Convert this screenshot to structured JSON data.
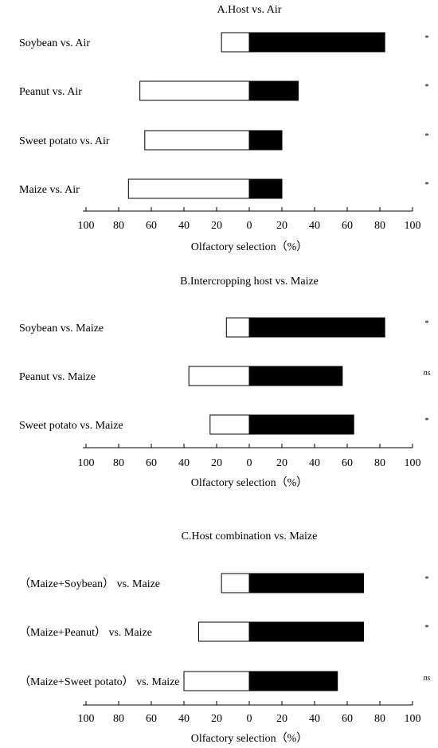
{
  "chart_data": [
    {
      "type": "bar",
      "orientation": "horizontal-diverging",
      "title": "A.Host vs. Air",
      "xlabel": "Olfactory selection（%）",
      "ylabel": "",
      "xlim": [
        -100,
        100
      ],
      "tick_labels": [
        "100",
        "80",
        "60",
        "40",
        "20",
        "0",
        "20",
        "40",
        "60",
        "80",
        "100"
      ],
      "categories": [
        "Soybean vs. Air",
        "Peanut vs. Air",
        "Sweet potato vs. Air",
        "Maize vs. Air"
      ],
      "series": [
        {
          "fill": "#ffffff",
          "side": "left",
          "values": [
            17,
            67,
            64,
            74
          ]
        },
        {
          "fill": "#000000",
          "side": "right",
          "values": [
            83,
            30,
            20,
            20
          ]
        }
      ],
      "significance": [
        "*",
        "*",
        "*",
        "*"
      ]
    },
    {
      "type": "bar",
      "orientation": "horizontal-diverging",
      "title": "B.Intercropping host vs. Maize",
      "xlabel": "Olfactory selection（%）",
      "ylabel": "",
      "xlim": [
        -100,
        100
      ],
      "tick_labels": [
        "100",
        "80",
        "60",
        "40",
        "20",
        "0",
        "20",
        "40",
        "60",
        "80",
        "100"
      ],
      "categories": [
        "Soybean vs. Maize",
        "Peanut vs. Maize",
        "Sweet potato vs. Maize"
      ],
      "series": [
        {
          "fill": "#ffffff",
          "side": "left",
          "values": [
            14,
            37,
            24
          ]
        },
        {
          "fill": "#000000",
          "side": "right",
          "values": [
            83,
            57,
            64
          ]
        }
      ],
      "significance": [
        "*",
        "ns",
        "*"
      ]
    },
    {
      "type": "bar",
      "orientation": "horizontal-diverging",
      "title": "C.Host combination  vs. Maize",
      "xlabel": "Olfactory selection（%）",
      "ylabel": "",
      "xlim": [
        -100,
        100
      ],
      "tick_labels": [
        "100",
        "80",
        "60",
        "40",
        "20",
        "0",
        "20",
        "40",
        "60",
        "80",
        "100"
      ],
      "categories": [
        "（Maize+Soybean） vs. Maize",
        "（Maize+Peanut） vs. Maize",
        "（Maize+Sweet potato） vs. Maize"
      ],
      "series": [
        {
          "fill": "#ffffff",
          "side": "left",
          "values": [
            17,
            31,
            40
          ]
        },
        {
          "fill": "#000000",
          "side": "right",
          "values": [
            70,
            70,
            54
          ]
        }
      ],
      "significance": [
        "*",
        "*",
        "ns"
      ]
    }
  ]
}
